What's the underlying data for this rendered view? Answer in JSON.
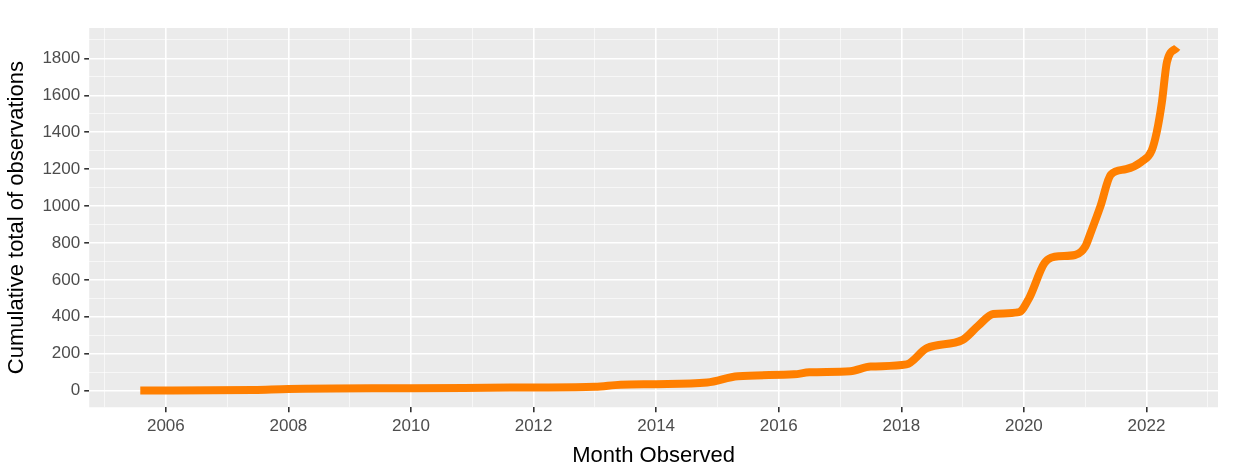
{
  "chart_data": {
    "type": "line",
    "xlabel": "Month Observed",
    "ylabel": "Cumulative total of observations",
    "x": [
      "2005-08",
      "2007-06",
      "2008-01",
      "2010-01",
      "2012-01",
      "2013-01",
      "2013-06",
      "2014-01",
      "2014-11",
      "2015-05",
      "2016-04",
      "2016-07",
      "2017-03",
      "2017-07",
      "2018-02",
      "2018-06",
      "2019-01",
      "2019-04",
      "2019-07",
      "2019-12",
      "2020-02",
      "2020-05",
      "2020-07",
      "2020-11",
      "2021-01",
      "2021-02",
      "2021-04",
      "2021-06",
      "2021-09",
      "2021-12",
      "2022-02",
      "2022-03",
      "2022-04",
      "2022-05",
      "2022-07"
    ],
    "series": [
      {
        "color": "#ff7f00",
        "values": [
          0,
          3,
          9,
          13,
          17,
          21,
          32,
          35,
          44,
          78,
          88,
          99,
          105,
          130,
          142,
          230,
          275,
          350,
          415,
          425,
          500,
          690,
          725,
          735,
          780,
          850,
          1000,
          1170,
          1200,
          1240,
          1300,
          1400,
          1560,
          1780,
          1860
        ]
      }
    ],
    "xlim": [
      "2004-10",
      "2023-03"
    ],
    "xticks": [
      {
        "value": "2005",
        "label": null
      },
      {
        "value": "2006",
        "label": "2006"
      },
      {
        "value": "2007",
        "label": null
      },
      {
        "value": "2008",
        "label": "2008"
      },
      {
        "value": "2009",
        "label": null
      },
      {
        "value": "2010",
        "label": "2010"
      },
      {
        "value": "2011",
        "label": null
      },
      {
        "value": "2012",
        "label": "2012"
      },
      {
        "value": "2013",
        "label": null
      },
      {
        "value": "2014",
        "label": "2014"
      },
      {
        "value": "2015",
        "label": null
      },
      {
        "value": "2016",
        "label": "2016"
      },
      {
        "value": "2017",
        "label": null
      },
      {
        "value": "2018",
        "label": "2018"
      },
      {
        "value": "2019",
        "label": null
      },
      {
        "value": "2020",
        "label": "2020"
      },
      {
        "value": "2021",
        "label": null
      },
      {
        "value": "2022",
        "label": "2022"
      },
      {
        "value": "2023",
        "label": null
      }
    ],
    "ylim": [
      -90,
      1965
    ],
    "yticks": [
      0,
      {
        "value": 100,
        "label": null
      },
      200,
      {
        "value": 300,
        "label": null
      },
      400,
      {
        "value": 500,
        "label": null
      },
      600,
      {
        "value": 700,
        "label": null
      },
      800,
      {
        "value": 900,
        "label": null
      },
      1000,
      {
        "value": 1100,
        "label": null
      },
      1200,
      {
        "value": 1300,
        "label": null
      },
      1400,
      {
        "value": 1500,
        "label": null
      },
      1600,
      {
        "value": 1700,
        "label": null
      },
      1800,
      {
        "value": 1900,
        "label": null
      }
    ],
    "grid": true,
    "legend": false,
    "marker": "none",
    "line_style": "solid"
  }
}
